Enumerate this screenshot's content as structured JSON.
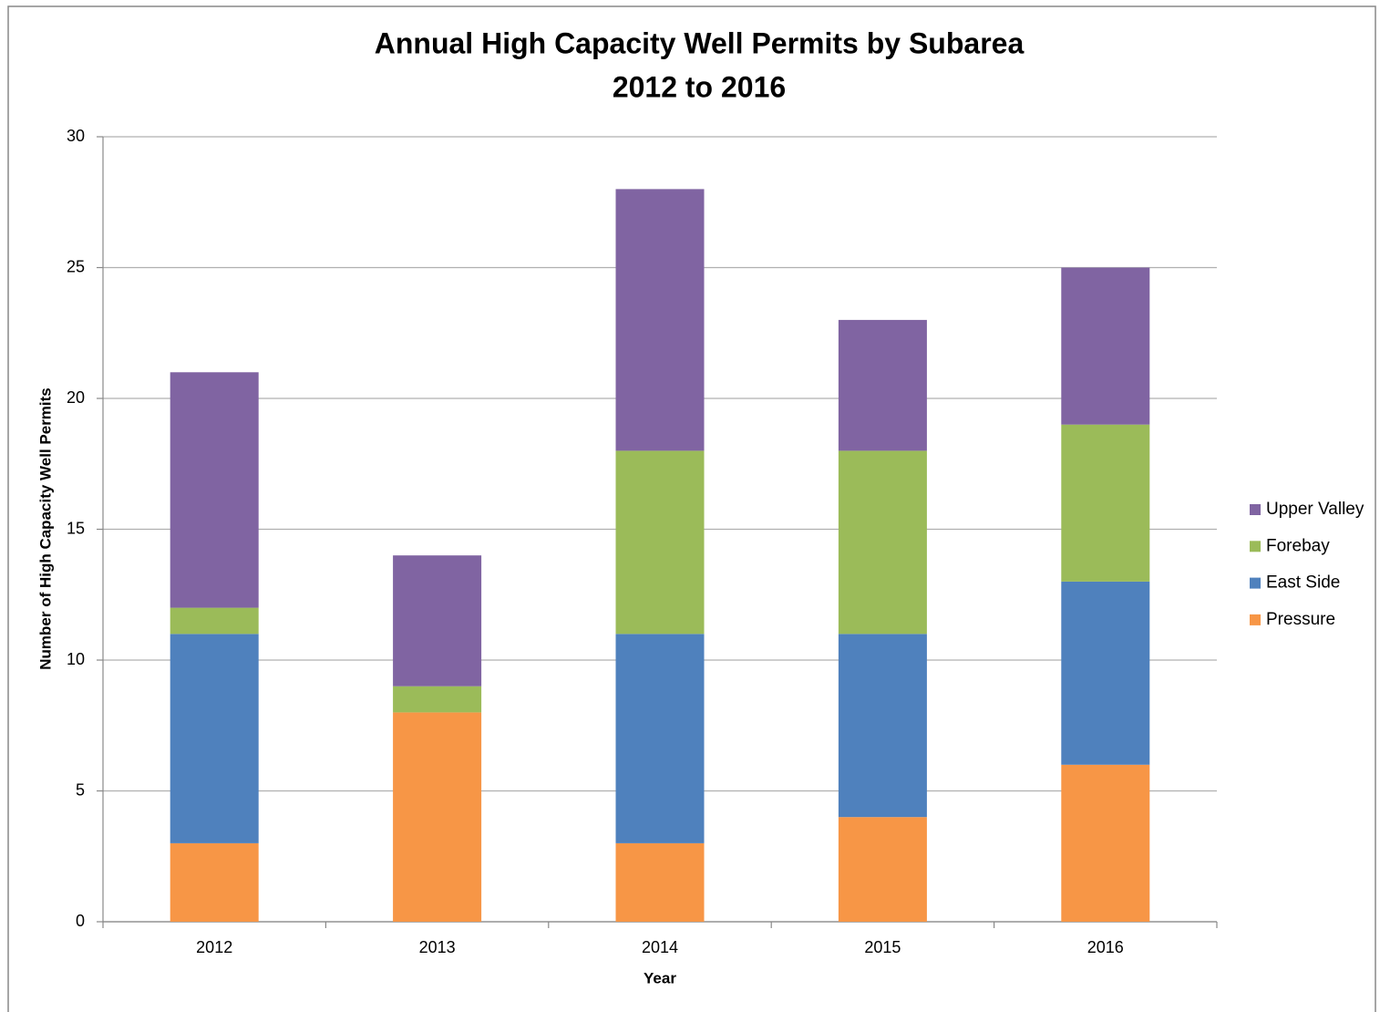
{
  "chart_data": {
    "type": "stacked-bar",
    "title": "Annual High Capacity Well Permits by Subarea",
    "subtitle": "2012 to 2016",
    "x_label": "Year",
    "y_label": "Number of High Capacity Well Permits",
    "categories": [
      "2012",
      "2013",
      "2014",
      "2015",
      "2016"
    ],
    "series": [
      {
        "name": "Pressure",
        "color": "#f79646",
        "values": [
          3,
          8,
          3,
          4,
          6
        ]
      },
      {
        "name": "East Side",
        "color": "#4f81bd",
        "values": [
          8,
          0,
          8,
          7,
          7
        ]
      },
      {
        "name": "Forebay",
        "color": "#9bbb59",
        "values": [
          1,
          1,
          7,
          7,
          6
        ]
      },
      {
        "name": "Upper Valley",
        "color": "#8064a2",
        "values": [
          9,
          5,
          10,
          5,
          6
        ]
      }
    ],
    "ylim": [
      0,
      30
    ],
    "yticks": [
      0,
      5,
      10,
      15,
      20,
      25,
      30
    ],
    "grid": true,
    "legend": "right"
  }
}
